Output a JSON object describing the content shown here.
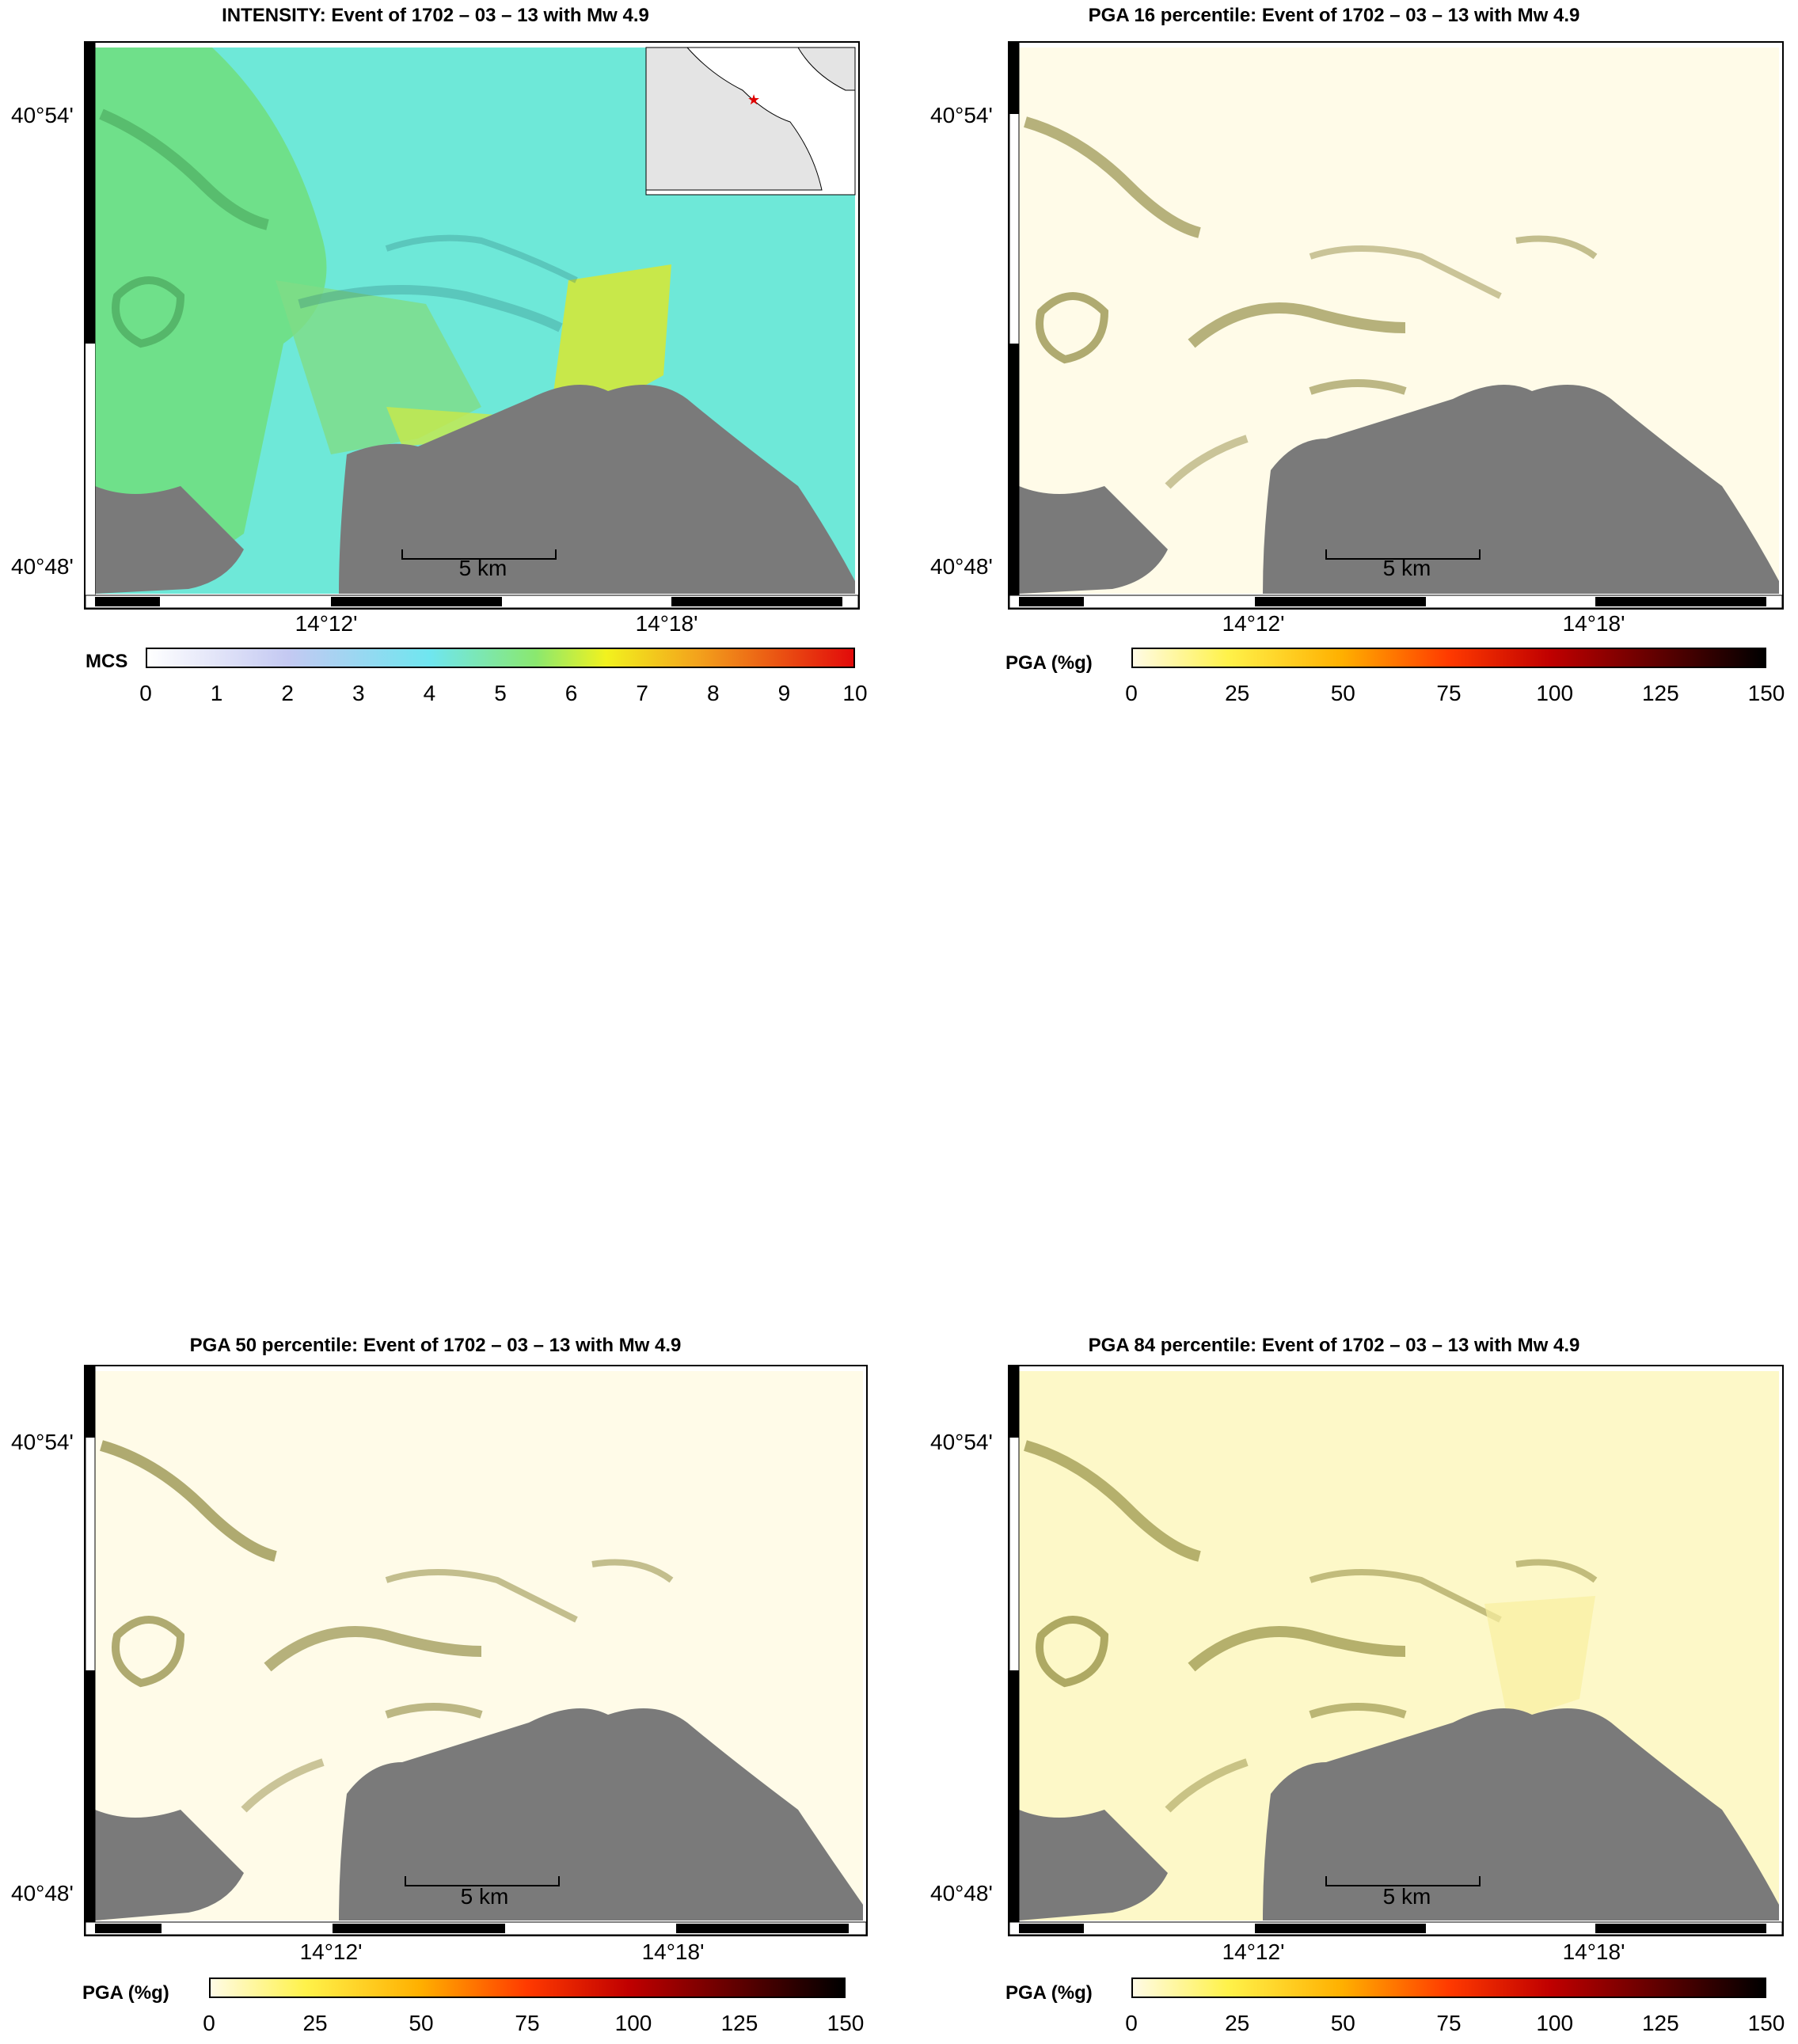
{
  "panels": [
    {
      "title": "INTENSITY: Event of 1702 – 03 – 13 with Mw 4.9",
      "kind": "intensity",
      "lat_labels": [
        "40°54'",
        "40°48'"
      ],
      "lon_labels": [
        "14°12'",
        "14°18'"
      ],
      "scale_label": "5 km",
      "colorbar_label": "MCS",
      "colorbar_ticks": [
        "0",
        "1",
        "2",
        "3",
        "4",
        "5",
        "6",
        "7",
        "8",
        "9",
        "10"
      ],
      "colorbar_colors": [
        "#ffffff",
        "#b7c3f0",
        "#6fe6f0",
        "#7ff07a",
        "#f2f21e",
        "#f39a1c",
        "#e20a0a"
      ]
    },
    {
      "title": "PGA 16 percentile: Event of 1702 – 03 – 13 with Mw 4.9",
      "kind": "pga16",
      "lat_labels": [
        "40°54'",
        "40°48'"
      ],
      "lon_labels": [
        "14°12'",
        "14°18'"
      ],
      "scale_label": "5 km",
      "colorbar_label": "PGA (%g)",
      "colorbar_ticks": [
        "0",
        "25",
        "50",
        "75",
        "100",
        "125",
        "150"
      ],
      "colorbar_colors": [
        "#fffbe6",
        "#fff24a",
        "#ffb000",
        "#ff3a00",
        "#b00000",
        "#000000"
      ]
    },
    {
      "title": "PGA 50 percentile: Event of 1702 – 03 – 13 with Mw 4.9",
      "kind": "pga50",
      "lat_labels": [
        "40°54'",
        "40°48'"
      ],
      "lon_labels": [
        "14°12'",
        "14°18'"
      ],
      "scale_label": "5 km",
      "colorbar_label": "PGA (%g)",
      "colorbar_ticks": [
        "0",
        "25",
        "50",
        "75",
        "100",
        "125",
        "150"
      ],
      "colorbar_colors": [
        "#fffbe6",
        "#fff24a",
        "#ffb000",
        "#ff3a00",
        "#b00000",
        "#000000"
      ]
    },
    {
      "title": "PGA 84 percentile: Event of 1702 – 03 – 13 with Mw 4.9",
      "kind": "pga84",
      "lat_labels": [
        "40°54'",
        "40°48'"
      ],
      "lon_labels": [
        "14°12'",
        "14°18'"
      ],
      "scale_label": "5 km",
      "colorbar_label": "PGA (%g)",
      "colorbar_ticks": [
        "0",
        "25",
        "50",
        "75",
        "100",
        "125",
        "150"
      ],
      "colorbar_colors": [
        "#fffbe6",
        "#fff24a",
        "#ffb000",
        "#ff3a00",
        "#b00000",
        "#000000"
      ]
    }
  ],
  "colors": {
    "sea": "#7a7a7a",
    "intensity_base": "#6ee8d8",
    "intensity_green": "#6fe08a",
    "intensity_yellow": "#c8e84a",
    "pga_land": "#fffbe8",
    "pga84_land": "#fdf8c8",
    "relief": "#7a7420",
    "inset_land": "#e4e4e4",
    "epicenter": "#e00000"
  }
}
